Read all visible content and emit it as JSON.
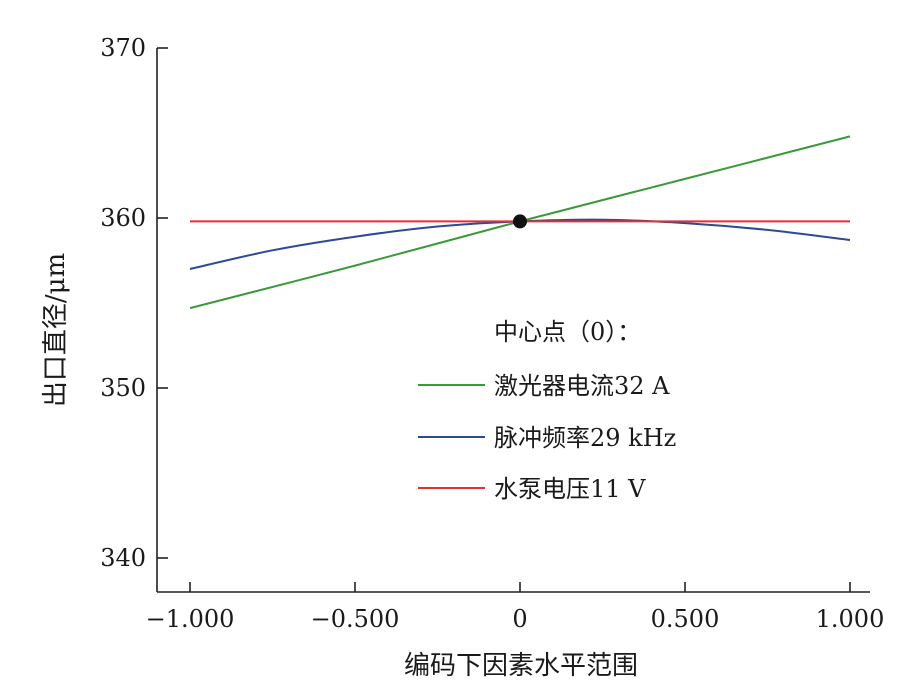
{
  "chart_data": {
    "type": "line",
    "title": "",
    "xlabel": "编码下因素水平范围",
    "ylabel": "出口直径/μm",
    "xlim": [
      -1.0,
      1.0
    ],
    "ylim": [
      338,
      370
    ],
    "x_ticks": [
      -1.0,
      -0.5,
      0,
      0.5,
      1.0
    ],
    "x_tick_labels": [
      "−1.000",
      "−0.500",
      "0",
      "0.500",
      "1.000"
    ],
    "y_ticks": [
      340,
      350,
      360,
      370
    ],
    "y_tick_labels": [
      "340",
      "350",
      "360",
      "370"
    ],
    "legend": {
      "title": "中心点（0）：",
      "placement": "center-right"
    },
    "center_point": {
      "x": 0,
      "y": 359.8
    },
    "series": [
      {
        "name": "激光器电流32 A",
        "color": "#3a9a3a",
        "x": [
          -1.0,
          -0.5,
          0,
          0.5,
          1.0
        ],
        "y": [
          354.7,
          357.2,
          359.8,
          362.3,
          364.8
        ]
      },
      {
        "name": "脉冲频率29 kHz",
        "color": "#2c4a9a",
        "x": [
          -1.0,
          -0.75,
          -0.5,
          -0.25,
          0,
          0.25,
          0.5,
          0.75,
          1.0
        ],
        "y": [
          357.0,
          358.1,
          358.9,
          359.5,
          359.8,
          359.9,
          359.7,
          359.3,
          358.7
        ]
      },
      {
        "name": "水泵电压11 V",
        "color": "#e03030",
        "x": [
          -1.0,
          -0.5,
          0,
          0.5,
          1.0
        ],
        "y": [
          359.8,
          359.8,
          359.8,
          359.8,
          359.8
        ]
      }
    ]
  }
}
